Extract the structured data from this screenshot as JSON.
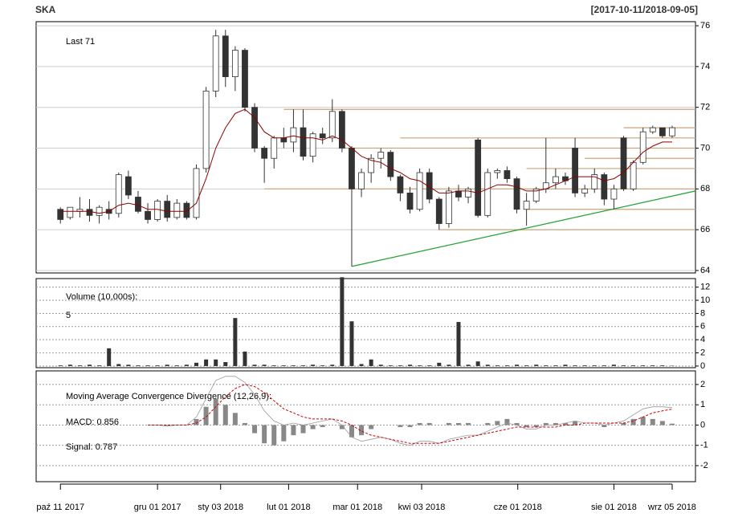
{
  "chart_data": {
    "type": "candlestick",
    "title": "SKA",
    "date_range": "[2017-10-11/2018-09-05]",
    "last_label": "Last 71",
    "open": [
      67,
      66.6,
      66.9,
      67.0,
      66.7,
      67.0,
      66.8,
      68.6,
      67.6,
      66.9,
      66.5,
      67.4,
      66.6,
      67.3,
      66.6,
      69.0,
      72.8,
      75.5,
      73.5,
      74.8,
      72.0,
      70.0,
      69.5,
      70.5,
      70.3,
      71.0,
      69.6,
      70.7,
      70.5,
      71.8,
      70.0,
      68.0,
      68.8,
      69.5,
      69.8,
      68.6,
      67.8,
      67.0,
      68.8,
      67.5,
      66.3,
      67.9,
      67.6,
      70.4,
      66.7,
      68.8,
      68.9,
      68.5,
      67.0,
      67.4,
      68.0,
      68.3,
      68.6,
      70.0,
      67.8,
      68.0,
      68.7,
      67.5,
      70.5,
      68.0,
      69.3,
      70.8,
      71.0,
      70.6
    ],
    "high": [
      67.1,
      67.1,
      67.6,
      67.5,
      67.2,
      67.4,
      68.8,
      68.9,
      67.9,
      67.3,
      67.5,
      67.7,
      67.5,
      67.4,
      69.2,
      73.0,
      75.8,
      75.8,
      75.0,
      74.9,
      72.2,
      70.1,
      70.6,
      71.0,
      71.9,
      71.9,
      70.8,
      71.0,
      72.4,
      71.9,
      70.1,
      69.0,
      69.7,
      70.0,
      69.9,
      68.7,
      68.1,
      69.0,
      69.0,
      67.6,
      68.1,
      68.2,
      68.1,
      70.5,
      69.0,
      69.0,
      69.1,
      68.6,
      67.8,
      68.1,
      70.5,
      69.0,
      68.8,
      70.5,
      68.2,
      69.0,
      68.8,
      68.2,
      70.6,
      69.4,
      71.0,
      71.1,
      71.0,
      71.1
    ],
    "low": [
      66.3,
      66.5,
      66.6,
      66.4,
      66.3,
      66.5,
      66.6,
      67.5,
      66.8,
      66.3,
      66.4,
      66.4,
      66.5,
      66.5,
      66.5,
      68.8,
      72.5,
      73.0,
      72.8,
      71.8,
      69.8,
      68.3,
      69.0,
      70.0,
      69.8,
      69.4,
      69.3,
      70.2,
      70.3,
      69.8,
      64.2,
      67.6,
      68.3,
      69.0,
      68.4,
      67.4,
      66.8,
      66.9,
      67.3,
      66.0,
      66.1,
      67.4,
      67.3,
      66.6,
      66.6,
      68.5,
      68.3,
      66.8,
      66.2,
      67.3,
      67.8,
      68.0,
      68.2,
      67.6,
      67.6,
      67.8,
      67.2,
      67.0,
      67.9,
      67.9,
      69.2,
      70.7,
      70.5,
      70.5
    ],
    "close": [
      66.5,
      67.1,
      67.0,
      66.7,
      67.1,
      66.8,
      68.7,
      67.7,
      66.9,
      66.5,
      67.4,
      66.6,
      67.3,
      66.6,
      69.0,
      72.8,
      75.5,
      73.5,
      74.8,
      72.0,
      70.0,
      69.5,
      70.5,
      70.3,
      71.0,
      69.6,
      70.7,
      70.5,
      71.8,
      70.0,
      68.0,
      68.8,
      69.5,
      69.8,
      68.6,
      67.8,
      67.0,
      68.8,
      67.5,
      66.3,
      67.9,
      67.6,
      68.0,
      66.7,
      68.8,
      68.9,
      68.5,
      67.0,
      67.4,
      68.0,
      68.3,
      68.6,
      68.4,
      67.8,
      68.0,
      68.7,
      67.5,
      68.0,
      68.0,
      69.3,
      70.8,
      71.0,
      70.6,
      71.0
    ],
    "up_color": "#ffffff",
    "down_color": "#333333",
    "ma": {
      "color": "#8b0000",
      "values": [
        66.9,
        66.9,
        66.9,
        66.9,
        66.8,
        66.9,
        67.2,
        67.3,
        67.2,
        67.0,
        67.0,
        66.9,
        66.9,
        66.9,
        67.3,
        68.5,
        70.0,
        71.0,
        71.7,
        71.9,
        71.5,
        70.8,
        70.5,
        70.5,
        70.6,
        70.5,
        70.5,
        70.4,
        70.6,
        70.4,
        70.0,
        69.6,
        69.4,
        69.3,
        69.0,
        68.8,
        68.5,
        68.4,
        68.1,
        67.8,
        67.8,
        67.9,
        67.9,
        67.8,
        68.0,
        68.2,
        68.2,
        68.1,
        67.9,
        67.9,
        68.0,
        68.2,
        68.4,
        68.6,
        68.6,
        68.6,
        68.4,
        68.5,
        68.8,
        69.3,
        69.8,
        70.1,
        70.3,
        70.3
      ]
    },
    "level_color": "#c8a47a",
    "levels": [
      {
        "value": 71.9,
        "start": 23
      },
      {
        "value": 71.0,
        "start": 58
      },
      {
        "value": 70.5,
        "start": 35
      },
      {
        "value": 70.0,
        "start": 29
      },
      {
        "value": 69.5,
        "start": 54
      },
      {
        "value": 69.0,
        "start": 48
      },
      {
        "value": 68.0,
        "start": 21
      },
      {
        "value": 67.0,
        "start": 48
      },
      {
        "value": 66.0,
        "start": 39
      }
    ],
    "trendline": {
      "color": "#22a033",
      "x": [
        30,
        65.4
      ],
      "y": [
        64.2,
        67.9
      ]
    },
    "xlim": [
      -2.5,
      65.4
    ],
    "xticks": [
      {
        "value": 0,
        "label": "paź 11 2017"
      },
      {
        "value": 10,
        "label": "gru 01 2017"
      },
      {
        "value": 16.5,
        "label": "sty 03 2018"
      },
      {
        "value": 23.5,
        "label": "lut 01 2018"
      },
      {
        "value": 30.6,
        "label": "mar 01 2018"
      },
      {
        "value": 37.2,
        "label": "kwi 03 2018"
      },
      {
        "value": 47.1,
        "label": "cze 01 2018"
      },
      {
        "value": 57,
        "label": "sie 01 2018"
      },
      {
        "value": 63,
        "label": "wrz 05 2018"
      }
    ],
    "ylim": [
      63.88,
      76.2
    ],
    "yticks": [
      64,
      66,
      68,
      70,
      72,
      74,
      76
    ],
    "volume": {
      "title": "Volume (10,000s):",
      "last_label": "5",
      "color": "#333333",
      "values": [
        0.1,
        0.2,
        0.1,
        0.2,
        0.1,
        2.7,
        0.3,
        0.2,
        0.1,
        0.1,
        0.1,
        0.2,
        0.1,
        0.2,
        0.5,
        1.0,
        1.0,
        0.6,
        7.3,
        2.2,
        0.2,
        0.2,
        0.1,
        0.1,
        0.1,
        0.1,
        0.2,
        0.1,
        0.2,
        13.5,
        6.8,
        0.3,
        1.0,
        0.2,
        0.1,
        0.1,
        0.2,
        0.1,
        0.1,
        0.5,
        0.2,
        6.7,
        0.2,
        0.7,
        0.2,
        0.1,
        0.1,
        0.2,
        0.1,
        0.2,
        0.1,
        0.1,
        0.2,
        0.1,
        0.1,
        0.1,
        0.1,
        0.2,
        0.1,
        0.1,
        0.1,
        0.1,
        0.1,
        0.05
      ],
      "ylim": [
        -0.25,
        13.3
      ],
      "yticks": [
        0,
        2,
        4,
        6,
        8,
        10,
        12
      ]
    },
    "macd": {
      "title": "Moving Average Convergence Divergence (12,26,9):",
      "macd_label": "MACD: 0.856",
      "signal_label": "Signal: 0.787",
      "macd_color": "#999999",
      "signal_color": "#cc0000",
      "hist_color": "#888888",
      "macd": [
        null,
        null,
        null,
        null,
        null,
        null,
        null,
        null,
        null,
        0,
        0,
        -0.05,
        0,
        0,
        0.4,
        1.3,
        2.2,
        2.4,
        2.4,
        2.1,
        1.5,
        0.7,
        0.2,
        0,
        0.1,
        0,
        0.1,
        0.2,
        0.3,
        0,
        -0.6,
        -0.8,
        -0.7,
        -0.6,
        -0.7,
        -0.9,
        -1.0,
        -0.8,
        -0.8,
        -0.9,
        -0.7,
        -0.6,
        -0.5,
        -0.5,
        -0.3,
        -0.1,
        0.1,
        0,
        -0.2,
        -0.2,
        0,
        0,
        0.1,
        0.2,
        0.1,
        0.1,
        0,
        0.1,
        0.2,
        0.5,
        0.8,
        0.9,
        0.9,
        0.856
      ],
      "signal": [
        null,
        null,
        null,
        null,
        null,
        null,
        null,
        null,
        null,
        0,
        0,
        0,
        0,
        0,
        0.1,
        0.4,
        0.9,
        1.4,
        1.8,
        2.0,
        1.9,
        1.6,
        1.2,
        0.8,
        0.6,
        0.4,
        0.3,
        0.3,
        0.3,
        0.2,
        0,
        -0.3,
        -0.5,
        -0.6,
        -0.7,
        -0.8,
        -0.9,
        -0.9,
        -0.9,
        -0.9,
        -0.8,
        -0.7,
        -0.6,
        -0.5,
        -0.4,
        -0.3,
        -0.2,
        -0.1,
        -0.1,
        -0.1,
        -0.1,
        -0.1,
        0,
        0,
        0.1,
        0.1,
        0.1,
        0.1,
        0.1,
        0.2,
        0.4,
        0.6,
        0.7,
        0.787
      ],
      "histogram": [
        null,
        null,
        null,
        null,
        null,
        null,
        null,
        null,
        null,
        0,
        0,
        -0.05,
        0,
        0,
        0.3,
        0.9,
        1.3,
        1.0,
        0.6,
        0.1,
        -0.4,
        -0.9,
        -1.0,
        -0.8,
        -0.5,
        -0.4,
        -0.2,
        -0.1,
        0,
        -0.2,
        -0.6,
        -0.5,
        -0.2,
        0,
        0,
        -0.1,
        -0.1,
        0.1,
        0.1,
        0,
        0.1,
        0.1,
        0.1,
        0,
        0.1,
        0.2,
        0.3,
        0.1,
        -0.1,
        -0.1,
        0.1,
        0.1,
        0.1,
        0.2,
        0,
        0,
        -0.1,
        0,
        0.1,
        0.3,
        0.4,
        0.3,
        0.2,
        0.07
      ],
      "ylim": [
        -2.79,
        2.67
      ],
      "yticks": [
        -2,
        -1,
        0,
        1,
        2
      ]
    }
  }
}
